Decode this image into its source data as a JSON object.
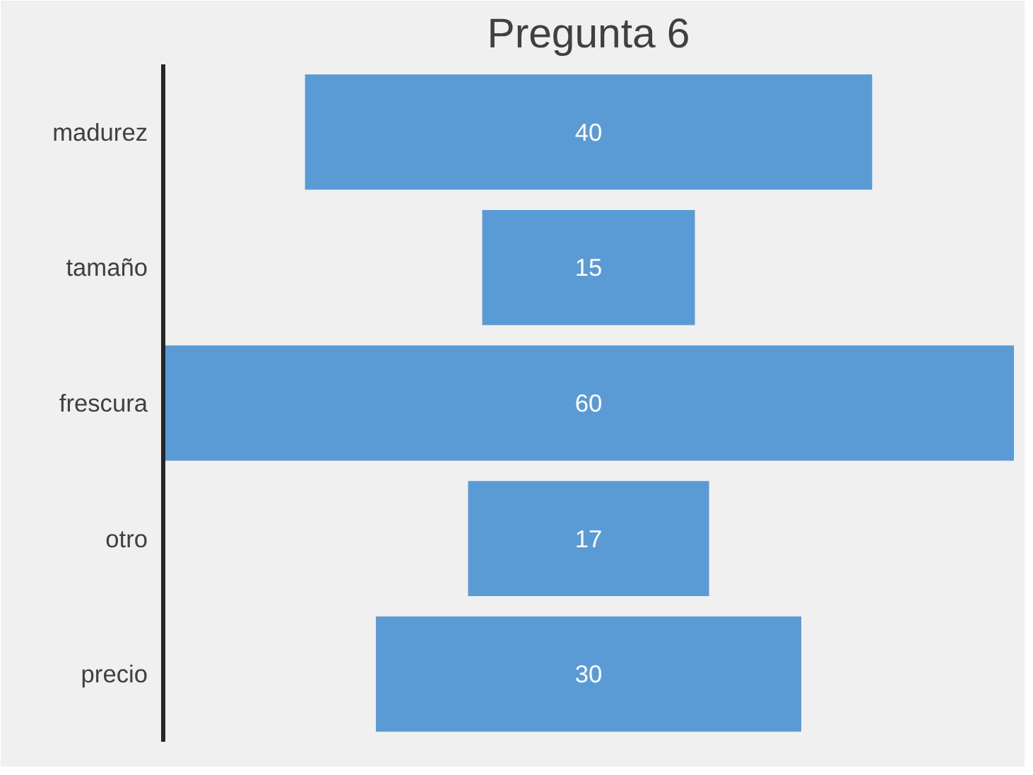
{
  "chart_data": {
    "type": "other",
    "title": "Pregunta 6",
    "categories": [
      "madurez",
      "tamaño",
      "frescura",
      "otro",
      "precio"
    ],
    "values": [
      40,
      15,
      60,
      17,
      30
    ],
    "color": "#5b9bd5",
    "data_labels": true
  }
}
